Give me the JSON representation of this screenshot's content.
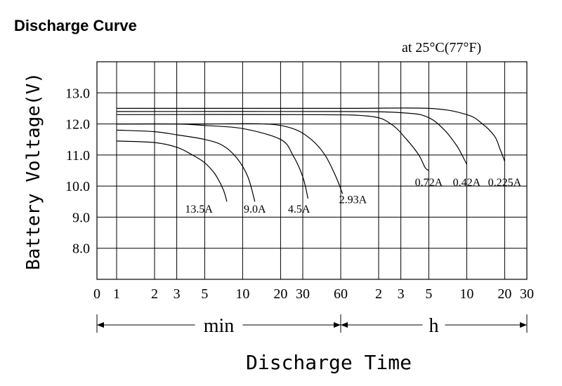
{
  "chart_data": {
    "type": "line",
    "title": "Discharge Curve",
    "condition": "at 25°C(77°F)",
    "xlabel": "Discharge Time",
    "ylabel": "Battery Voltage(V)",
    "ylim": [
      7.0,
      14.0
    ],
    "y_ticks": [
      "13.0",
      "12.0",
      "11.0",
      "10.0",
      "9.0",
      "8.0"
    ],
    "x_ticks": [
      {
        "label": "0",
        "unit": "min",
        "t": 0
      },
      {
        "label": "1",
        "unit": "min",
        "t": 1
      },
      {
        "label": "2",
        "unit": "min",
        "t": 2
      },
      {
        "label": "3",
        "unit": "min",
        "t": 3
      },
      {
        "label": "5",
        "unit": "min",
        "t": 5
      },
      {
        "label": "10",
        "unit": "min",
        "t": 10
      },
      {
        "label": "20",
        "unit": "min",
        "t": 20
      },
      {
        "label": "30",
        "unit": "min",
        "t": 30
      },
      {
        "label": "60",
        "unit": "min",
        "t": 60
      },
      {
        "label": "2",
        "unit": "h",
        "t": 120
      },
      {
        "label": "3",
        "unit": "h",
        "t": 180
      },
      {
        "label": "5",
        "unit": "h",
        "t": 300
      },
      {
        "label": "10",
        "unit": "h",
        "t": 600
      },
      {
        "label": "20",
        "unit": "h",
        "t": 1200
      },
      {
        "label": "30",
        "unit": "h",
        "t": 1800
      }
    ],
    "x_units": [
      {
        "label": "min",
        "from_tick": 0,
        "to_tick": 8
      },
      {
        "label": "h",
        "from_tick": 8,
        "to_tick": 14
      }
    ],
    "grid": true,
    "series": [
      {
        "name": "13.5A",
        "label_x": 4.5,
        "label_y": 9.15,
        "points": [
          [
            1,
            11.45
          ],
          [
            2,
            11.4
          ],
          [
            3,
            11.25
          ],
          [
            4,
            11.0
          ],
          [
            5,
            10.75
          ],
          [
            6,
            10.4
          ],
          [
            7,
            9.9
          ],
          [
            7.5,
            9.5
          ]
        ]
      },
      {
        "name": "9.0A",
        "label_x": 12.5,
        "label_y": 9.15,
        "points": [
          [
            1,
            11.8
          ],
          [
            2,
            11.75
          ],
          [
            3,
            11.65
          ],
          [
            5,
            11.5
          ],
          [
            7,
            11.3
          ],
          [
            9,
            10.9
          ],
          [
            11,
            10.3
          ],
          [
            12.5,
            9.5
          ]
        ]
      },
      {
        "name": "4.5A",
        "label_x": 28,
        "label_y": 9.15,
        "points": [
          [
            1,
            12.0
          ],
          [
            3,
            12.0
          ],
          [
            5,
            11.95
          ],
          [
            10,
            11.85
          ],
          [
            20,
            11.5
          ],
          [
            25,
            11.0
          ],
          [
            30,
            10.3
          ],
          [
            33,
            9.6
          ]
        ]
      },
      {
        "name": "2.93A",
        "label_x": 75,
        "label_y": 9.45,
        "points": [
          [
            1,
            12.0
          ],
          [
            5,
            12.0
          ],
          [
            15,
            12.0
          ],
          [
            25,
            11.85
          ],
          [
            35,
            11.5
          ],
          [
            45,
            11.0
          ],
          [
            55,
            10.3
          ],
          [
            62,
            9.75
          ]
        ]
      },
      {
        "name": "0.72A",
        "label_x": 300,
        "label_y": 10.0,
        "points": [
          [
            1,
            12.3
          ],
          [
            30,
            12.3
          ],
          [
            100,
            12.25
          ],
          [
            150,
            12.0
          ],
          [
            200,
            11.5
          ],
          [
            250,
            11.0
          ],
          [
            280,
            10.6
          ],
          [
            300,
            10.5
          ]
        ]
      },
      {
        "name": "0.42A",
        "label_x": 600,
        "label_y": 10.0,
        "points": [
          [
            1,
            12.4
          ],
          [
            60,
            12.4
          ],
          [
            200,
            12.35
          ],
          [
            300,
            12.2
          ],
          [
            400,
            11.8
          ],
          [
            500,
            11.3
          ],
          [
            550,
            11.0
          ],
          [
            600,
            10.7
          ]
        ]
      },
      {
        "name": "0.225A",
        "label_x": 1200,
        "label_y": 10.0,
        "points": [
          [
            1,
            12.5
          ],
          [
            60,
            12.5
          ],
          [
            300,
            12.5
          ],
          [
            600,
            12.3
          ],
          [
            800,
            12.0
          ],
          [
            1000,
            11.6
          ],
          [
            1100,
            11.2
          ],
          [
            1200,
            10.8
          ]
        ]
      }
    ]
  }
}
